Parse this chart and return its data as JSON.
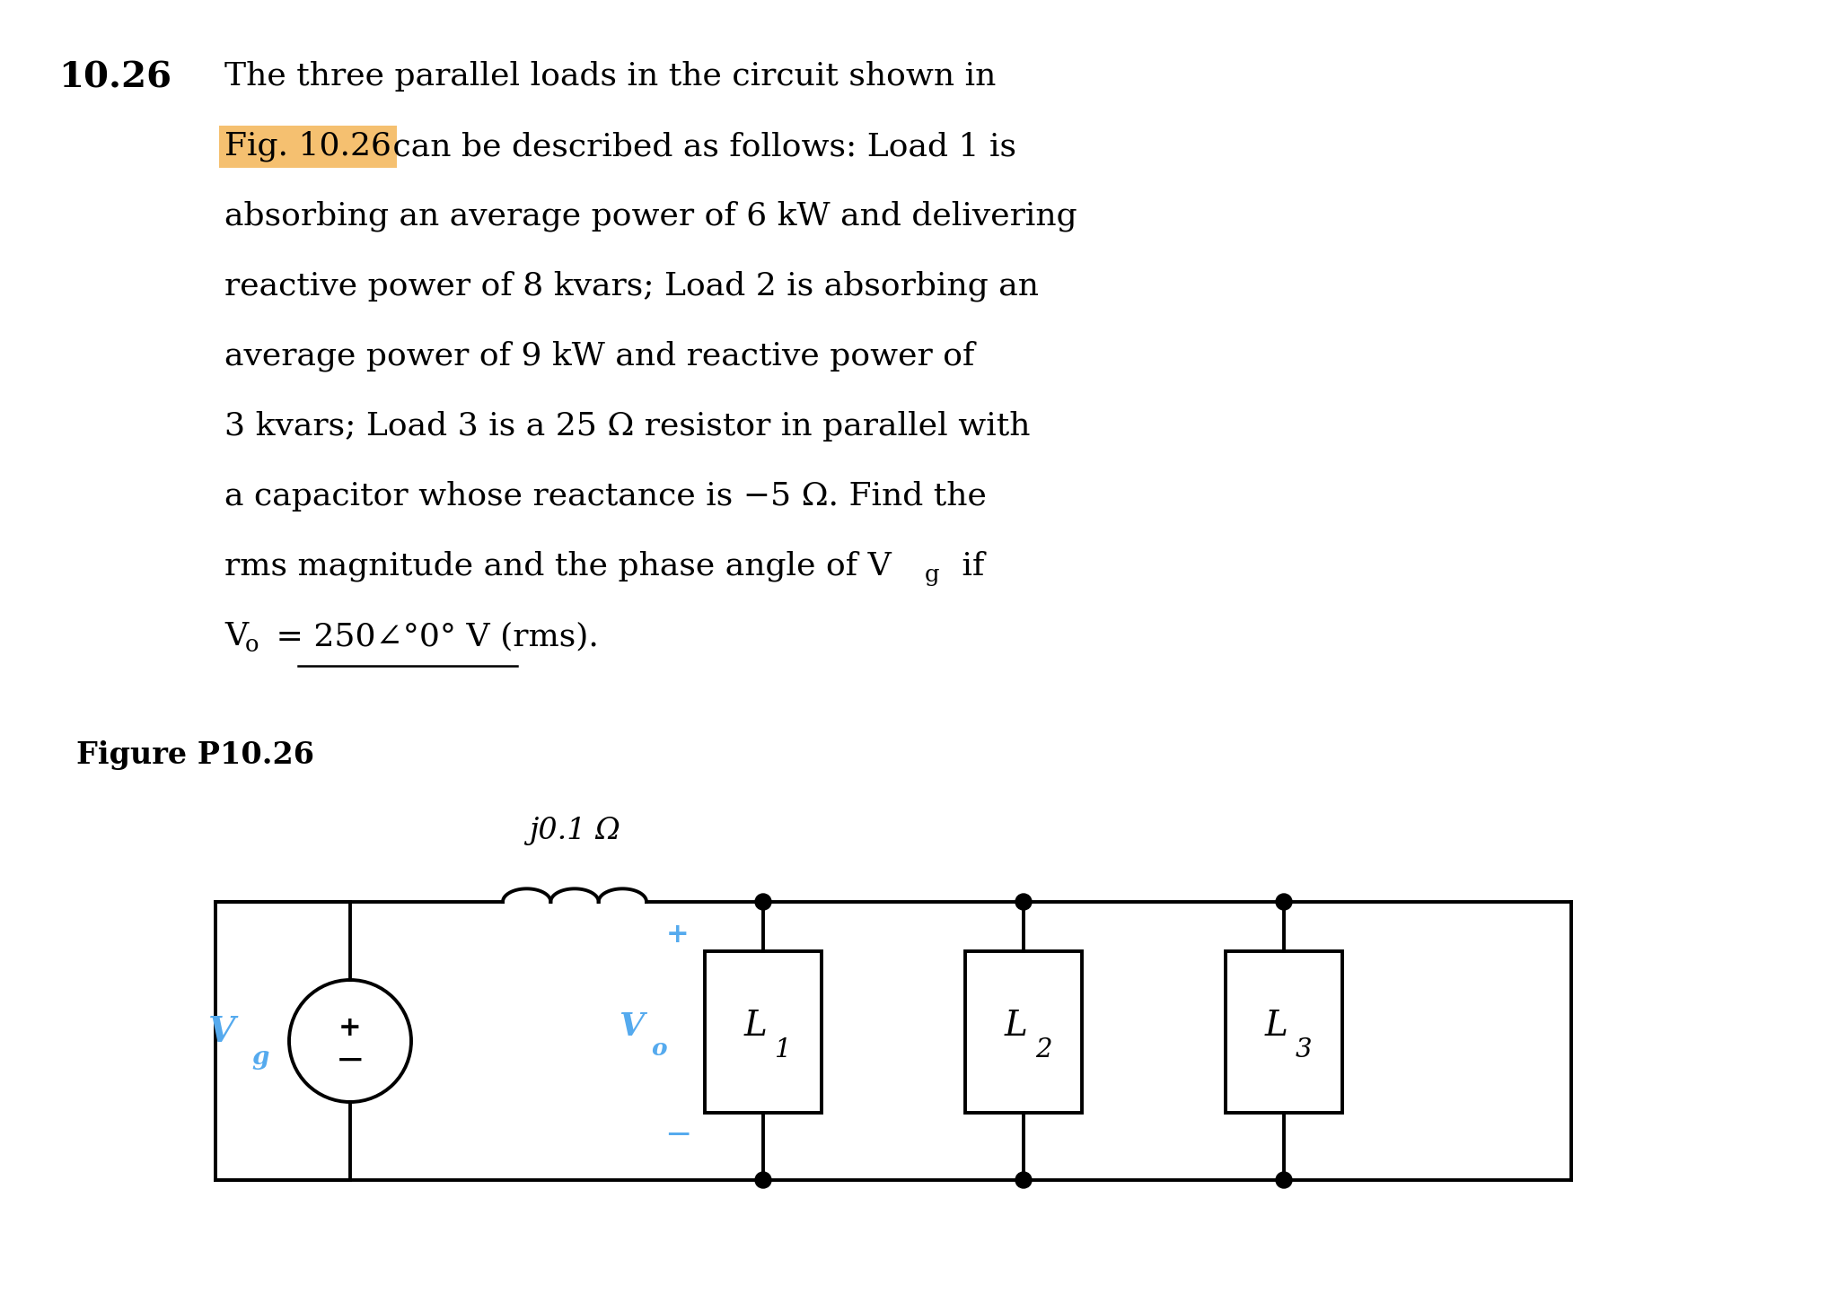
{
  "bg_color": "#ffffff",
  "text_color": "#000000",
  "circuit_color": "#000000",
  "blue_color": "#55aaee",
  "highlight_color": "#f5c070",
  "title_num": "10.26",
  "line1": "The three parallel loads in the circuit shown in",
  "line2_highlight": "Fig. 10.26",
  "line2_rest": " can be described as follows: Load 1 is",
  "line3": "absorbing an average power of 6 kW and delivering",
  "line4": "reactive power of 8 kvars; Load 2 is absorbing an",
  "line5": "average power of 9 kW and reactive power of",
  "line6": "3 kvars; Load 3 is a 25 Ω resistor in parallel with",
  "line7": "a capacitor whose reactance is −5 Ω. Find the",
  "line8a": "rms magnitude and the phase angle of V",
  "line8b": "g",
  "line8c": " if",
  "line9a": "V",
  "line9b": "o",
  "line9c": " = 250∠°0° V (rms).",
  "fig_label": "Figure P10.26",
  "inductor_label": "j0.1 Ω",
  "plus_sign": "+",
  "minus_sign": "−",
  "Vg_V": "V",
  "Vg_sub": "g",
  "Vo_V": "V",
  "Vo_sub": "o",
  "L1_label": "L",
  "L1_sub": "1",
  "L2_label": "L",
  "L2_sub": "2",
  "L3_label": "L",
  "L3_sub": "3"
}
